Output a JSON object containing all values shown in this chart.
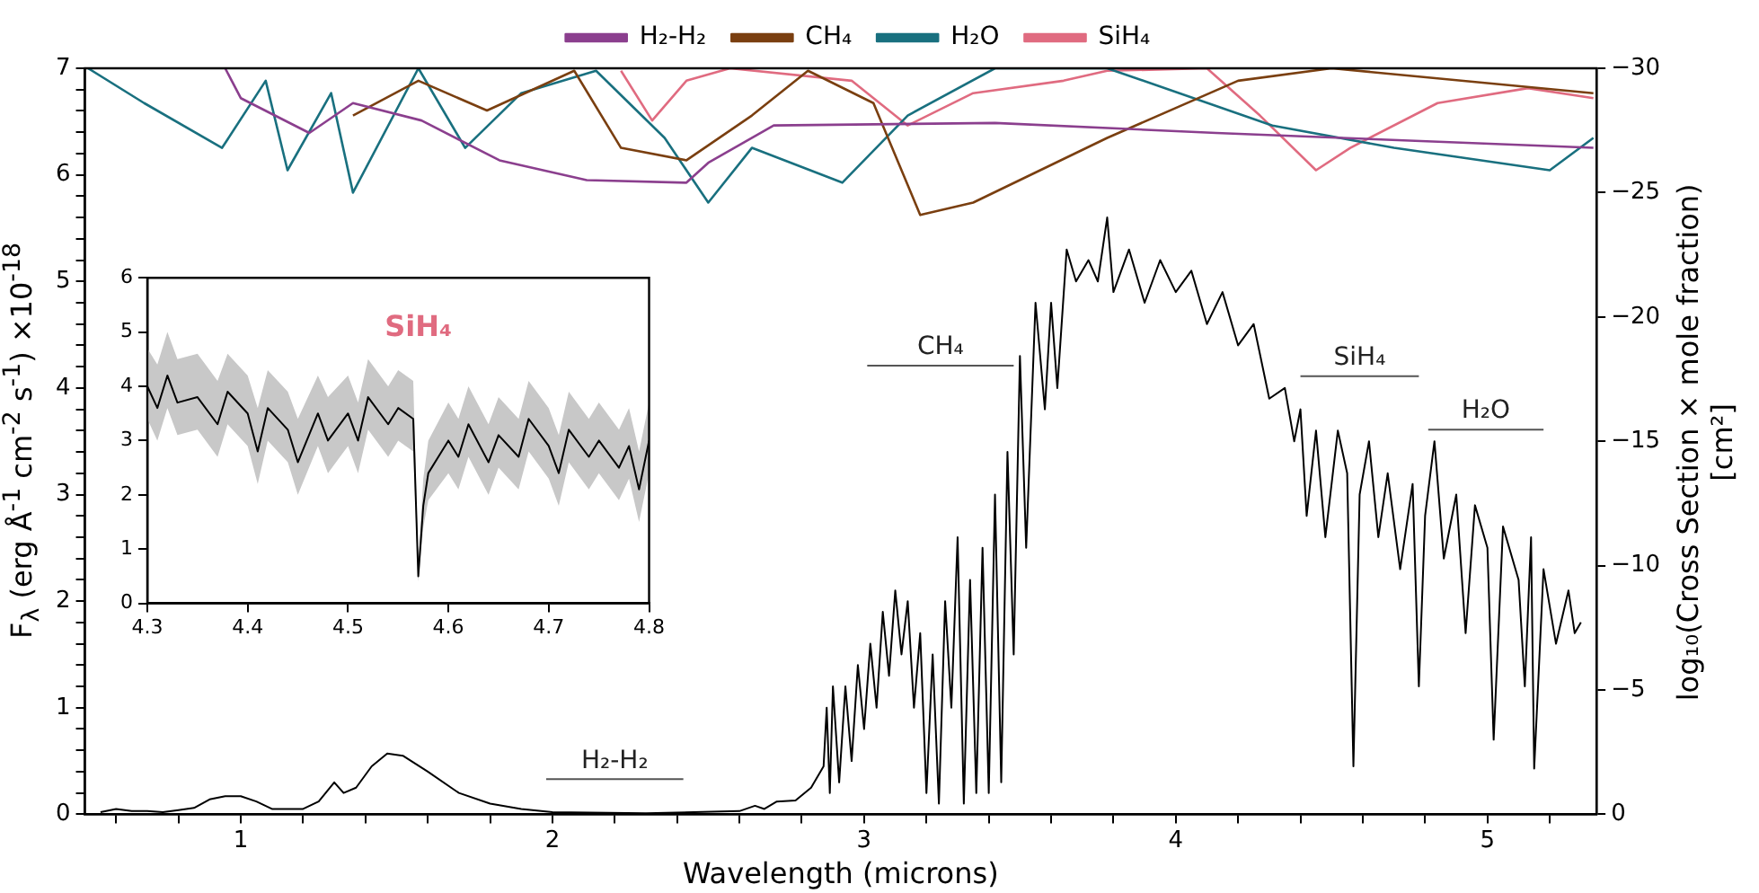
{
  "chart_data": [
    {
      "type": "line",
      "xlabel": "Wavelength (microns)",
      "ylabel": "F$_{λ}$ (erg Å$^{-1}$ cm$^{-2}$ s$^{-1}$) ×10$^{-18}$",
      "y2label": "log₁₀(Cross Section × mole fraction) [cm²]",
      "xlim": [
        0.5,
        5.35
      ],
      "xticks": [
        {
          "value": 0.6,
          "label": null
        },
        {
          "value": 0.8,
          "label": null
        },
        1,
        {
          "value": 1.2,
          "label": null
        },
        {
          "value": 1.4,
          "label": null
        },
        {
          "value": 1.6,
          "label": null
        },
        {
          "value": 1.8,
          "label": null
        },
        2,
        {
          "value": 2.2,
          "label": null
        },
        {
          "value": 2.4,
          "label": null
        },
        {
          "value": 2.6,
          "label": null
        },
        {
          "value": 2.8,
          "label": null
        },
        3,
        {
          "value": 3.2,
          "label": null
        },
        {
          "value": 3.4,
          "label": null
        },
        {
          "value": 3.6,
          "label": null
        },
        {
          "value": 3.8,
          "label": null
        },
        4,
        {
          "value": 4.2,
          "label": null
        },
        {
          "value": 4.4,
          "label": null
        },
        {
          "value": 4.6,
          "label": null
        },
        {
          "value": 4.8,
          "label": null
        },
        5,
        {
          "value": 5.2,
          "label": null
        }
      ],
      "ylim": [
        0,
        7
      ],
      "yticks": [
        0,
        {
          "value": 0.2,
          "label": null
        },
        {
          "value": 0.4,
          "label": null
        },
        {
          "value": 0.6,
          "label": null
        },
        {
          "value": 0.8,
          "label": null
        },
        1,
        {
          "value": 1.2,
          "label": null
        },
        {
          "value": 1.4,
          "label": null
        },
        {
          "value": 1.6,
          "label": null
        },
        {
          "value": 1.8,
          "label": null
        },
        2,
        {
          "value": 2.2,
          "label": null
        },
        {
          "value": 2.4,
          "label": null
        },
        {
          "value": 2.6,
          "label": null
        },
        {
          "value": 2.8,
          "label": null
        },
        3,
        {
          "value": 3.2,
          "label": null
        },
        {
          "value": 3.4,
          "label": null
        },
        {
          "value": 3.6,
          "label": null
        },
        {
          "value": 3.8,
          "label": null
        },
        4,
        {
          "value": 4.2,
          "label": null
        },
        {
          "value": 4.4,
          "label": null
        },
        {
          "value": 4.6,
          "label": null
        },
        {
          "value": 4.8,
          "label": null
        },
        5,
        {
          "value": 5.2,
          "label": null
        },
        {
          "value": 5.4,
          "label": null
        },
        {
          "value": 5.6,
          "label": null
        },
        {
          "value": 5.8,
          "label": null
        },
        6,
        {
          "value": 6.2,
          "label": null
        },
        {
          "value": 6.4,
          "label": null
        },
        {
          "value": 6.6,
          "label": null
        },
        {
          "value": 6.8,
          "label": null
        },
        7
      ],
      "y2lim": [
        0,
        -30
      ],
      "y2ticks": [
        0,
        -5,
        -10,
        -15,
        -20,
        -25,
        -30
      ],
      "legend": "top",
      "marker": "none",
      "grid": false,
      "annotations": [
        "H₂-H₂",
        "CH₄",
        "SiH₄",
        "H₂O"
      ],
      "series": [
        {
          "name": "H₂-H₂",
          "color": "#8b3f8e",
          "axis": "y2",
          "x": [
            0.95,
            1.0,
            1.22,
            1.36,
            1.58,
            1.83,
            2.11,
            2.43,
            2.5,
            2.71,
            3.42,
            4.13,
            5.34
          ],
          "values": [
            -30,
            -28.8,
            -27.4,
            -28.6,
            -27.9,
            -26.3,
            -25.5,
            -25.4,
            -26.2,
            -27.7,
            -27.8,
            -27.4,
            -26.8
          ]
        },
        {
          "name": "CH₄",
          "color": "#7a3f10",
          "axis": "y2",
          "x": [
            1.36,
            1.57,
            1.79,
            2.07,
            2.22,
            2.43,
            2.64,
            2.82,
            3.03,
            3.18,
            3.35,
            3.78,
            4.2,
            4.5,
            5.34
          ],
          "values": [
            -28.1,
            -29.5,
            -28.3,
            -29.9,
            -26.8,
            -26.3,
            -28.1,
            -29.9,
            -28.6,
            -24.1,
            -24.6,
            -27.2,
            -29.5,
            -30,
            -29.0
          ]
        },
        {
          "name": "H₂O",
          "color": "#19707f",
          "axis": "y2",
          "x": [
            0.51,
            0.69,
            0.94,
            1.08,
            1.15,
            1.29,
            1.36,
            1.57,
            1.72,
            1.9,
            2.14,
            2.36,
            2.5,
            2.64,
            2.93,
            3.14,
            3.42,
            3.78,
            4.31,
            4.7,
            5.2,
            5.34
          ],
          "values": [
            -30,
            -28.6,
            -26.8,
            -29.5,
            -25.9,
            -29.0,
            -25.0,
            -30,
            -26.8,
            -29.0,
            -29.9,
            -27.2,
            -24.6,
            -26.8,
            -25.4,
            -28.1,
            -30,
            -30,
            -27.7,
            -26.8,
            -25.9,
            -27.2
          ]
        },
        {
          "name": "SiH₄",
          "color": "#e06b80",
          "axis": "y2",
          "x": [
            2.22,
            2.32,
            2.43,
            2.57,
            2.96,
            3.14,
            3.35,
            3.64,
            3.78,
            4.1,
            4.27,
            4.45,
            4.56,
            4.84,
            5.13,
            5.34
          ],
          "values": [
            -29.9,
            -27.9,
            -29.5,
            -30,
            -29.5,
            -27.7,
            -29.0,
            -29.5,
            -29.9,
            -30,
            -28.1,
            -25.9,
            -26.8,
            -28.6,
            -29.2,
            -28.8
          ]
        },
        {
          "color": "#000000",
          "x": [
            0.55,
            0.6,
            0.65,
            0.7,
            0.75,
            0.8,
            0.85,
            0.9,
            0.95,
            1.0,
            1.05,
            1.1,
            1.2,
            1.25,
            1.3,
            1.33,
            1.37,
            1.42,
            1.47,
            1.52,
            1.6,
            1.7,
            1.8,
            1.9,
            2.0,
            2.3,
            2.6,
            2.65,
            2.68,
            2.72,
            2.78,
            2.83,
            2.87,
            2.88,
            2.89,
            2.9,
            2.92,
            2.94,
            2.96,
            2.98,
            3.0,
            3.02,
            3.04,
            3.06,
            3.08,
            3.1,
            3.12,
            3.14,
            3.16,
            3.18,
            3.2,
            3.22,
            3.24,
            3.26,
            3.28,
            3.3,
            3.32,
            3.34,
            3.36,
            3.38,
            3.4,
            3.42,
            3.44,
            3.46,
            3.48,
            3.5,
            3.52,
            3.55,
            3.58,
            3.6,
            3.62,
            3.65,
            3.68,
            3.72,
            3.75,
            3.78,
            3.8,
            3.85,
            3.9,
            3.95,
            4.0,
            4.05,
            4.1,
            4.15,
            4.2,
            4.25,
            4.3,
            4.35,
            4.38,
            4.4,
            4.42,
            4.45,
            4.48,
            4.52,
            4.55,
            4.57,
            4.59,
            4.62,
            4.65,
            4.68,
            4.72,
            4.76,
            4.78,
            4.8,
            4.83,
            4.86,
            4.9,
            4.93,
            4.96,
            5.0,
            5.02,
            5.05,
            5.1,
            5.12,
            5.14,
            5.15,
            5.18,
            5.22,
            5.26,
            5.28,
            5.3
          ],
          "values": [
            0.02,
            0.05,
            0.03,
            0.03,
            0.02,
            0.04,
            0.06,
            0.14,
            0.17,
            0.17,
            0.12,
            0.05,
            0.05,
            0.12,
            0.3,
            0.2,
            0.25,
            0.45,
            0.57,
            0.55,
            0.4,
            0.2,
            0.1,
            0.05,
            0.02,
            0.01,
            0.03,
            0.08,
            0.05,
            0.12,
            0.13,
            0.25,
            0.45,
            1.0,
            0.2,
            1.2,
            0.3,
            1.2,
            0.5,
            1.4,
            0.8,
            1.6,
            1.0,
            1.9,
            1.3,
            2.1,
            1.5,
            2.0,
            1.0,
            1.7,
            0.2,
            1.5,
            0.1,
            2.0,
            1.0,
            2.6,
            0.1,
            2.2,
            0.2,
            2.5,
            0.2,
            3.0,
            0.3,
            3.4,
            1.5,
            4.3,
            2.5,
            4.8,
            3.8,
            4.8,
            4.0,
            5.3,
            5.0,
            5.2,
            5.0,
            5.6,
            4.9,
            5.3,
            4.8,
            5.2,
            4.9,
            5.1,
            4.6,
            4.9,
            4.4,
            4.6,
            3.9,
            4.0,
            3.5,
            3.8,
            2.8,
            3.6,
            2.6,
            3.6,
            3.2,
            0.45,
            3.0,
            3.5,
            2.6,
            3.2,
            2.3,
            3.1,
            1.2,
            2.8,
            3.5,
            2.4,
            3.0,
            1.7,
            2.9,
            2.5,
            0.7,
            2.7,
            2.2,
            1.2,
            2.6,
            0.43,
            2.3,
            1.6,
            2.1,
            1.7,
            1.8
          ]
        },
        {
          "color": "#555555",
          "x": [
            1.98,
            2.42
          ],
          "values": [
            0.33,
            0.33
          ]
        },
        {
          "color": "#555555",
          "x": [
            3.01,
            3.48
          ],
          "values": [
            4.21,
            4.21
          ]
        },
        {
          "color": "#555555",
          "x": [
            4.4,
            4.78
          ],
          "values": [
            4.11,
            4.11
          ]
        },
        {
          "color": "#555555",
          "x": [
            4.81,
            5.18
          ],
          "values": [
            3.61,
            3.61
          ]
        }
      ]
    },
    {
      "type": "line",
      "xlim": [
        4.3,
        4.8
      ],
      "xticks": [
        4.3,
        4.4,
        4.5,
        4.6,
        4.7,
        4.8
      ],
      "ylim": [
        0,
        6
      ],
      "yticks": [
        0,
        1,
        2,
        3,
        4,
        5,
        6
      ],
      "marker": "none",
      "grid": false,
      "annotations": [
        "SiH₄"
      ],
      "series": [
        {
          "color": "#000000",
          "x": [
            4.3,
            4.31,
            4.32,
            4.33,
            4.35,
            4.37,
            4.38,
            4.4,
            4.41,
            4.42,
            4.44,
            4.45,
            4.47,
            4.48,
            4.5,
            4.51,
            4.52,
            4.54,
            4.55,
            4.565,
            4.57,
            4.575,
            4.58,
            4.6,
            4.61,
            4.62,
            4.64,
            4.65,
            4.67,
            4.68,
            4.7,
            4.71,
            4.72,
            4.74,
            4.75,
            4.77,
            4.78,
            4.79,
            4.8
          ],
          "values": [
            4.0,
            3.6,
            4.2,
            3.7,
            3.8,
            3.3,
            3.9,
            3.5,
            2.8,
            3.6,
            3.2,
            2.6,
            3.5,
            3.0,
            3.5,
            3.0,
            3.8,
            3.3,
            3.6,
            3.4,
            0.5,
            1.8,
            2.4,
            3.0,
            2.7,
            3.3,
            2.6,
            3.1,
            2.7,
            3.4,
            2.9,
            2.4,
            3.2,
            2.7,
            3.0,
            2.5,
            2.9,
            2.1,
            3.0
          ],
          "lower": [
            3.4,
            3.0,
            3.6,
            3.1,
            3.2,
            2.7,
            3.3,
            2.9,
            2.2,
            3.0,
            2.6,
            2.0,
            2.9,
            2.4,
            2.9,
            2.4,
            3.2,
            2.7,
            3.0,
            2.8,
            0.4,
            1.4,
            1.9,
            2.4,
            2.1,
            2.7,
            2.0,
            2.5,
            2.1,
            2.8,
            2.3,
            1.8,
            2.6,
            2.1,
            2.4,
            1.9,
            2.3,
            1.5,
            2.4
          ],
          "upper": [
            4.7,
            4.4,
            5.0,
            4.5,
            4.6,
            4.1,
            4.6,
            4.2,
            3.6,
            4.3,
            3.9,
            3.4,
            4.2,
            3.8,
            4.2,
            3.7,
            4.5,
            4.0,
            4.3,
            4.1,
            0.7,
            2.3,
            3.0,
            3.7,
            3.4,
            4.0,
            3.3,
            3.8,
            3.4,
            4.1,
            3.6,
            3.1,
            3.9,
            3.4,
            3.7,
            3.2,
            3.6,
            2.8,
            3.7
          ]
        }
      ]
    }
  ]
}
